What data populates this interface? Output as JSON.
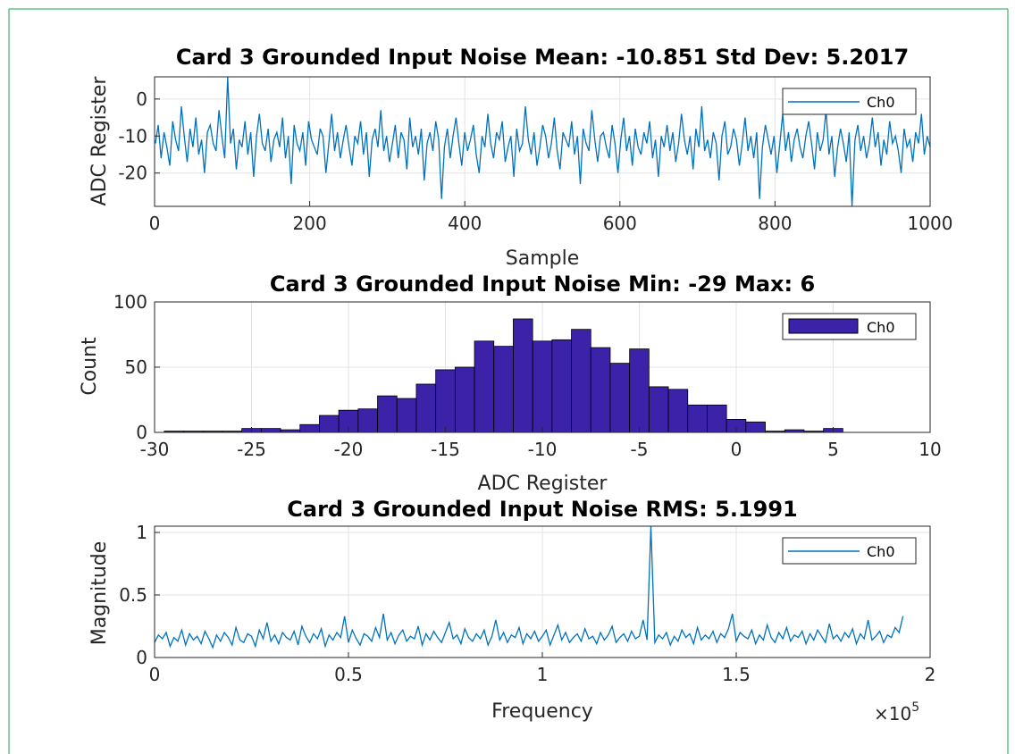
{
  "colors": {
    "frame_border": "#1aa34a",
    "line": "#0072BD",
    "bar": "#3b22a8",
    "grid": "#e3e3e3",
    "axis": "#262626"
  },
  "chart_data": [
    {
      "type": "line",
      "title": "Card 3 Grounded Input Noise  Mean: -10.851 Std Dev: 5.2017",
      "xlabel": "Sample",
      "ylabel": "ADC Register",
      "xlim": [
        0,
        1000
      ],
      "ylim": [
        -29,
        6
      ],
      "xticks": [
        0,
        200,
        400,
        600,
        800,
        1000
      ],
      "xtick_labels": [
        "0",
        "200",
        "400",
        "600",
        "800",
        "1000"
      ],
      "yticks": [
        -20,
        -10,
        0
      ],
      "ytick_labels": [
        "-20",
        "-10",
        "0"
      ],
      "grid": true,
      "legend": {
        "position": "top-right",
        "entries": [
          "Ch0"
        ]
      },
      "series": [
        {
          "name": "Ch0",
          "x_range": [
            1,
            1000
          ],
          "mean": -10.851,
          "std": 5.2017,
          "min": -29,
          "max": 6,
          "values_sampled_every_4": [
            -12,
            -7,
            -16,
            -9,
            -13,
            -18,
            -6,
            -11,
            -14,
            -2,
            -10,
            -17,
            -8,
            -13,
            -5,
            -15,
            -11,
            -20,
            -9,
            -7,
            -12,
            -14,
            -3,
            -10,
            -16,
            6,
            -12,
            -8,
            -19,
            -11,
            -13,
            -6,
            -15,
            -9,
            -21,
            -10,
            -4,
            -12,
            -14,
            -8,
            -17,
            -11,
            -9,
            -13,
            -5,
            -16,
            -10,
            -23,
            -7,
            -12,
            -14,
            -9,
            -18,
            -6,
            -11,
            -13,
            -15,
            -8,
            -10,
            -20,
            -12,
            -4,
            -14,
            -9,
            -16,
            -11,
            -7,
            -13,
            -18,
            -10,
            -12,
            -6,
            -15,
            -9,
            -21,
            -11,
            -8,
            -13,
            -3,
            -14,
            -10,
            -17,
            -12,
            -7,
            -16,
            -9,
            -11,
            -19,
            -5,
            -13,
            -10,
            -15,
            -8,
            -22,
            -12,
            -9,
            -14,
            -6,
            -11,
            -27,
            -13,
            -8,
            -16,
            -10,
            -5,
            -12,
            -18,
            -9,
            -14,
            -11,
            -7,
            -15,
            -20,
            -10,
            -13,
            -4,
            -12,
            -16,
            -9,
            -11,
            -6,
            -17,
            -13,
            -10,
            -21,
            -8,
            -14,
            -12,
            -2,
            -11,
            -15,
            -9,
            -18,
            -13,
            -7,
            -10,
            -16,
            -12,
            -5,
            -14,
            -19,
            -9,
            -11,
            -13,
            -6,
            -15,
            -10,
            -23,
            -8,
            -12,
            -14,
            -3,
            -11,
            -17,
            -10,
            -9,
            -13,
            -16,
            -7,
            -12,
            -20,
            -11,
            -5,
            -14,
            -10,
            -18,
            -8,
            -13,
            -15,
            -9,
            -12,
            -6,
            -16,
            -11,
            -21,
            -10,
            -13,
            -7,
            -14,
            -9,
            -17,
            -12,
            -4,
            -11,
            -15,
            -10,
            -19,
            -8,
            -13,
            -2,
            -14,
            -11,
            -16,
            -9,
            -12,
            -22,
            -10,
            -6,
            -15,
            -13,
            -8,
            -11,
            -18,
            -12,
            -5,
            -14,
            -10,
            -16,
            -9,
            -27,
            -13,
            -7,
            -11,
            -15,
            -10,
            -20,
            -12,
            -4,
            -14,
            -9,
            -17,
            -11,
            -8,
            -13,
            -16,
            -10,
            -6,
            -12,
            -19,
            -9,
            -14,
            -11,
            -3,
            -15,
            -10,
            -21,
            -13,
            -8,
            -12,
            -17,
            -9,
            -29,
            -11,
            -7,
            -14,
            -10,
            -16,
            -12,
            -5,
            -13,
            -9,
            -18,
            -11,
            -15,
            -6,
            -12,
            -10,
            -14,
            -20,
            -8,
            -13,
            -11,
            -17,
            -9,
            -12,
            -4,
            -15,
            -10,
            -13
          ]
        }
      ]
    },
    {
      "type": "bar",
      "title": "Card 3 Grounded Input Noise Min: -29 Max: 6",
      "xlabel": "ADC Register",
      "ylabel": "Count",
      "xlim": [
        -30,
        10
      ],
      "ylim": [
        0,
        100
      ],
      "xticks": [
        -30,
        -25,
        -20,
        -15,
        -10,
        -5,
        0,
        5,
        10
      ],
      "xtick_labels": [
        "-30",
        "-25",
        "-20",
        "-15",
        "-10",
        "-5",
        "0",
        "5",
        "10"
      ],
      "yticks": [
        0,
        50,
        100
      ],
      "ytick_labels": [
        "0",
        "50",
        "100"
      ],
      "grid": true,
      "legend": {
        "position": "top-right",
        "entries": [
          "Ch0"
        ]
      },
      "bin_width": 1,
      "bin_starts": [
        -29,
        -28,
        -27,
        -26,
        -25,
        -24,
        -23,
        -22,
        -21,
        -20,
        -19,
        -18,
        -17,
        -16,
        -15,
        -14,
        -13,
        -12,
        -11,
        -10,
        -9,
        -8,
        -7,
        -6,
        -5,
        -4,
        -3,
        -2,
        -1,
        0,
        1,
        2,
        3,
        4,
        5,
        6
      ],
      "values": [
        1,
        1,
        1,
        1,
        3,
        3,
        2,
        6,
        13,
        17,
        18,
        28,
        26,
        37,
        48,
        50,
        70,
        66,
        87,
        70,
        71,
        79,
        65,
        53,
        64,
        35,
        33,
        21,
        21,
        10,
        8,
        1,
        2,
        1,
        3,
        0
      ],
      "series": [
        {
          "name": "Ch0"
        }
      ]
    },
    {
      "type": "line",
      "title": "Card 3 Grounded Input Noise RMS: 5.1991",
      "xlabel": "Frequency",
      "ylabel": "Magnitude",
      "xlim": [
        0,
        200000
      ],
      "ylim": [
        0,
        1.05
      ],
      "xticks": [
        0,
        50000,
        100000,
        150000,
        200000
      ],
      "xtick_labels": [
        "0",
        "0.5",
        "1",
        "1.5",
        "2"
      ],
      "x_exponent_label": "×10",
      "x_exponent_value": "5",
      "yticks": [
        0,
        0.5,
        1
      ],
      "ytick_labels": [
        "0",
        "0.5",
        "1"
      ],
      "grid": true,
      "legend": {
        "position": "top-right",
        "entries": [
          "Ch0"
        ]
      },
      "series": [
        {
          "name": "Ch0",
          "x_range": [
            0,
            195000
          ],
          "peak": {
            "x": 130000,
            "y": 1.05
          },
          "values_sampled_every_1000": [
            0.12,
            0.18,
            0.15,
            0.2,
            0.09,
            0.16,
            0.13,
            0.22,
            0.1,
            0.19,
            0.14,
            0.17,
            0.11,
            0.21,
            0.15,
            0.08,
            0.18,
            0.13,
            0.2,
            0.16,
            0.1,
            0.24,
            0.14,
            0.12,
            0.19,
            0.17,
            0.09,
            0.22,
            0.15,
            0.28,
            0.13,
            0.18,
            0.11,
            0.2,
            0.16,
            0.14,
            0.21,
            0.1,
            0.25,
            0.17,
            0.12,
            0.19,
            0.15,
            0.23,
            0.09,
            0.18,
            0.14,
            0.2,
            0.16,
            0.33,
            0.12,
            0.22,
            0.15,
            0.1,
            0.19,
            0.17,
            0.13,
            0.24,
            0.16,
            0.35,
            0.14,
            0.2,
            0.11,
            0.18,
            0.22,
            0.13,
            0.17,
            0.15,
            0.25,
            0.1,
            0.19,
            0.14,
            0.21,
            0.16,
            0.12,
            0.2,
            0.28,
            0.15,
            0.18,
            0.11,
            0.23,
            0.16,
            0.13,
            0.19,
            0.15,
            0.22,
            0.1,
            0.17,
            0.3,
            0.14,
            0.2,
            0.12,
            0.18,
            0.16,
            0.24,
            0.11,
            0.19,
            0.15,
            0.21,
            0.13,
            0.17,
            0.22,
            0.1,
            0.18,
            0.26,
            0.14,
            0.2,
            0.12,
            0.16,
            0.19,
            0.13,
            0.23,
            0.15,
            0.17,
            0.11,
            0.2,
            0.14,
            0.18,
            0.25,
            0.12,
            0.16,
            0.19,
            0.13,
            0.21,
            0.15,
            0.17,
            0.3,
            0.14,
            1.05,
            0.12,
            0.18,
            0.15,
            0.2,
            0.1,
            0.17,
            0.13,
            0.22,
            0.16,
            0.19,
            0.11,
            0.24,
            0.14,
            0.18,
            0.15,
            0.21,
            0.12,
            0.19,
            0.16,
            0.23,
            0.35,
            0.13,
            0.2,
            0.17,
            0.15,
            0.22,
            0.11,
            0.18,
            0.14,
            0.26,
            0.16,
            0.12,
            0.2,
            0.15,
            0.24,
            0.13,
            0.18,
            0.16,
            0.21,
            0.11,
            0.19,
            0.14,
            0.22,
            0.17,
            0.12,
            0.27,
            0.15,
            0.18,
            0.13,
            0.2,
            0.16,
            0.23,
            0.11,
            0.19,
            0.15,
            0.3,
            0.14,
            0.17,
            0.21,
            0.12,
            0.18,
            0.16,
            0.24,
            0.2,
            0.33
          ]
        }
      ]
    }
  ]
}
